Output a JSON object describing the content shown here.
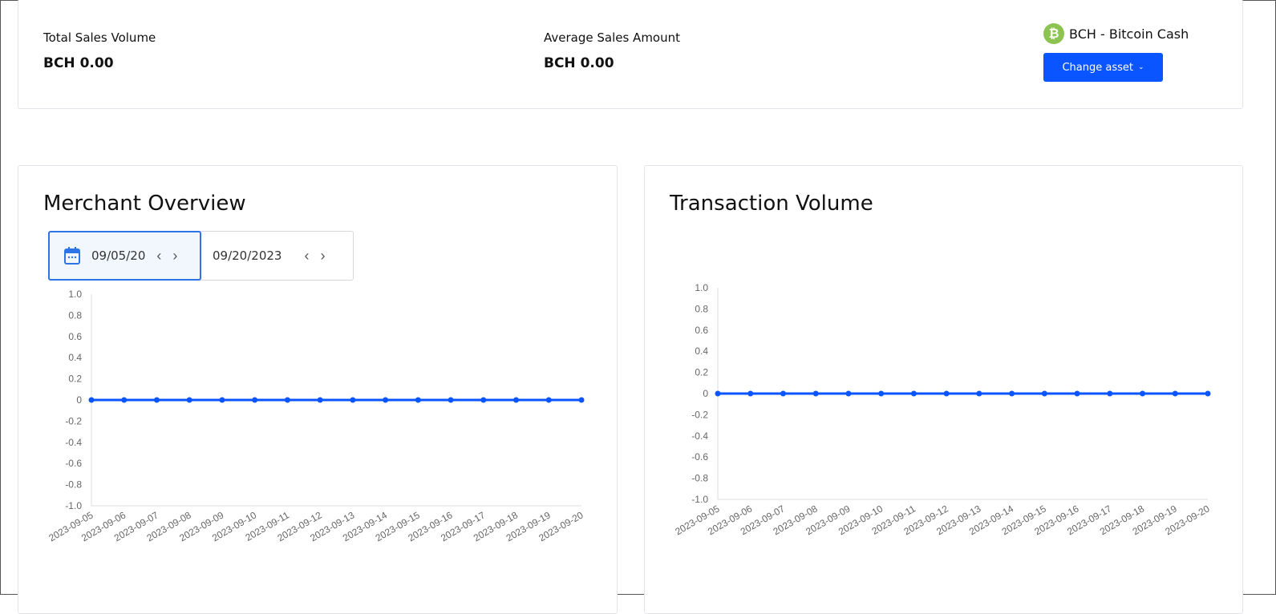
{
  "summary": {
    "total_label": "Total Sales Volume",
    "total_value": "BCH 0.00",
    "avg_label": "Average Sales Amount",
    "avg_value": "BCH 0.00"
  },
  "asset": {
    "name": "BCH - Bitcoin Cash",
    "icon": "bitcoin-cash-icon",
    "color": "#8dc351",
    "button": "Change asset",
    "button_color": "#0a55ff"
  },
  "merchant": {
    "title": "Merchant Overview",
    "start_date": "09/05/20",
    "end_date": "09/20/2023"
  },
  "transaction": {
    "title": "Transaction Volume"
  },
  "chart_data": [
    {
      "type": "line",
      "title": "Merchant Overview",
      "x": [
        "2023-09-05",
        "2023-09-06",
        "2023-09-07",
        "2023-09-08",
        "2023-09-09",
        "2023-09-10",
        "2023-09-11",
        "2023-09-12",
        "2023-09-13",
        "2023-09-14",
        "2023-09-15",
        "2023-09-16",
        "2023-09-17",
        "2023-09-18",
        "2023-09-19",
        "2023-09-20"
      ],
      "values": [
        0,
        0,
        0,
        0,
        0,
        0,
        0,
        0,
        0,
        0,
        0,
        0,
        0,
        0,
        0,
        0
      ],
      "ylim": [
        -1,
        1
      ],
      "yticks": [
        "1.0",
        "0.8",
        "0.6",
        "0.4",
        "0.2",
        "0",
        "-0.2",
        "-0.4",
        "-0.6",
        "-0.8",
        "-1.0"
      ],
      "color": "#0a55ff"
    },
    {
      "type": "line",
      "title": "Transaction Volume",
      "x": [
        "2023-09-05",
        "2023-09-06",
        "2023-09-07",
        "2023-09-08",
        "2023-09-09",
        "2023-09-10",
        "2023-09-11",
        "2023-09-12",
        "2023-09-13",
        "2023-09-14",
        "2023-09-15",
        "2023-09-16",
        "2023-09-17",
        "2023-09-18",
        "2023-09-19",
        "2023-09-20"
      ],
      "values": [
        0,
        0,
        0,
        0,
        0,
        0,
        0,
        0,
        0,
        0,
        0,
        0,
        0,
        0,
        0,
        0
      ],
      "ylim": [
        -1,
        1
      ],
      "yticks": [
        "1.0",
        "0.8",
        "0.6",
        "0.4",
        "0.2",
        "0",
        "-0.2",
        "-0.4",
        "-0.6",
        "-0.8",
        "-1.0"
      ],
      "color": "#0a55ff"
    }
  ]
}
